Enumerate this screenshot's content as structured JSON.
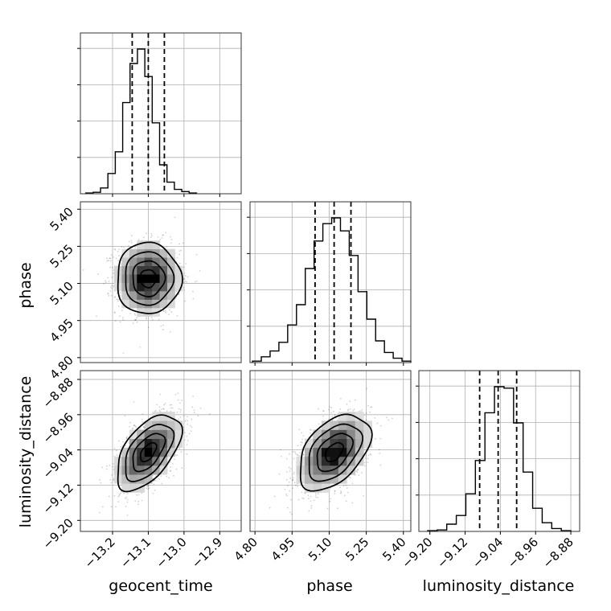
{
  "chart_data": {
    "type": "corner",
    "parameters": [
      "geocent_time",
      "phase",
      "luminosity_distance"
    ],
    "ticks": {
      "geocent_time": [
        "-13.2",
        "-13.1",
        "-13.0",
        "-12.9"
      ],
      "phase": [
        "4.80",
        "4.95",
        "5.10",
        "5.25",
        "5.40"
      ],
      "luminosity_distance": [
        "-9.20",
        "-9.12",
        "-9.04",
        "-8.96",
        "-8.88"
      ]
    },
    "ranges": {
      "geocent_time": [
        -13.29,
        -12.84
      ],
      "phase": [
        4.78,
        5.43
      ],
      "luminosity_distance": [
        -9.225,
        -8.86
      ]
    },
    "ticks_numeric": {
      "geocent_time": [
        -13.2,
        -13.1,
        -13.0,
        -12.9
      ],
      "phase": [
        4.8,
        4.95,
        5.1,
        5.25,
        5.4
      ],
      "luminosity_distance": [
        -9.2,
        -9.12,
        -9.04,
        -8.96,
        -8.88
      ]
    },
    "quantiles": {
      "geocent_time": [
        -13.145,
        -13.1,
        -13.055
      ],
      "phase": [
        5.043,
        5.12,
        5.188
      ],
      "luminosity_distance": [
        -9.087,
        -9.045,
        -9.003
      ]
    },
    "means": {
      "geocent_time": -13.1,
      "phase": 5.12,
      "luminosity_distance": -9.045
    },
    "sigmas": {
      "geocent_time": 0.045,
      "phase": 0.072,
      "luminosity_distance": 0.043
    },
    "correlations": {
      "phase|geocent_time": 0.0,
      "luminosity_distance|geocent_time": 0.55,
      "luminosity_distance|phase": 0.45
    },
    "histograms": {
      "geocent_time": [
        0.005,
        0.01,
        0.04,
        0.14,
        0.29,
        0.63,
        0.9,
        1.0,
        0.81,
        0.49,
        0.2,
        0.08,
        0.03,
        0.015,
        0.005
      ],
      "phase": [
        0.01,
        0.04,
        0.08,
        0.14,
        0.26,
        0.4,
        0.65,
        0.84,
        0.96,
        1.0,
        0.91,
        0.74,
        0.49,
        0.3,
        0.15,
        0.07,
        0.03,
        0.01
      ],
      "luminosity_distance": [
        0.005,
        0.01,
        0.05,
        0.11,
        0.26,
        0.49,
        0.82,
        1.0,
        0.99,
        0.75,
        0.41,
        0.16,
        0.06,
        0.02,
        0.005
      ]
    },
    "hist_bins": {
      "geocent_time": [
        -13.275,
        -12.965
      ],
      "phase": [
        4.79,
        5.43
      ],
      "luminosity_distance": [
        -9.205,
        -8.88
      ]
    },
    "grid": true,
    "contour_levels_sigma": [
      0.5,
      1.0,
      1.5,
      2.0
    ]
  }
}
